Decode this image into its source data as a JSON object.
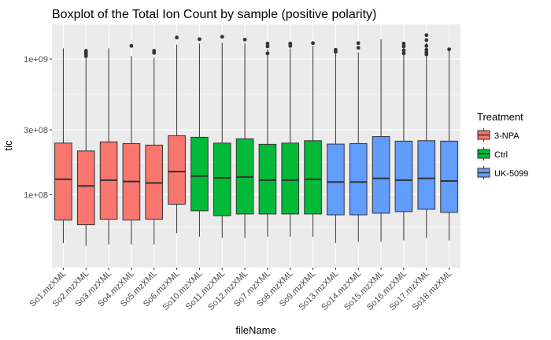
{
  "chart_data": {
    "type": "boxplot",
    "title": "Boxplot of the Total Ion Count by sample (positive polarity)",
    "xlabel": "fileName",
    "ylabel": "tic",
    "y_scale": "log10",
    "y_ticks": [
      {
        "value": 100000000,
        "label": "1e+08"
      },
      {
        "value": 300000000,
        "label": "3e+08"
      },
      {
        "value": 1000000000,
        "label": "1e+09"
      }
    ],
    "ylim": [
      29000000,
      1800000000
    ],
    "grid": true,
    "legend": {
      "title": "Treatment",
      "position": "right",
      "entries": [
        {
          "label": "3-NPA",
          "color": "#F8766D"
        },
        {
          "label": "Ctrl",
          "color": "#00BA38"
        },
        {
          "label": "UK-5099",
          "color": "#619CFF"
        }
      ]
    },
    "categories": [
      "So1.mzXML",
      "So2.mzXML",
      "So3.mzXML",
      "So4.mzXML",
      "So5.mzXML",
      "So6.mzXML",
      "So10.mzXML",
      "So11.mzXML",
      "So12.mzXML",
      "So7.mzXML",
      "So8.mzXML",
      "So9.mzXML",
      "So13.mzXML",
      "So14.mzXML",
      "So15.mzXML",
      "So16.mzXML",
      "So17.mzXML",
      "So18.mzXML"
    ],
    "boxes": [
      {
        "group": "3-NPA",
        "min": 44000000,
        "q1": 65000000,
        "median": 130000000,
        "q3": 240000000,
        "max": 1200000000,
        "outliers": []
      },
      {
        "group": "3-NPA",
        "min": 42000000,
        "q1": 60000000,
        "median": 116000000,
        "q3": 210000000,
        "max": 1100000000,
        "outliers": [
          1050000000,
          1080000000,
          1120000000,
          1150000000
        ]
      },
      {
        "group": "3-NPA",
        "min": 43000000,
        "q1": 66000000,
        "median": 128000000,
        "q3": 245000000,
        "max": 1200000000,
        "outliers": []
      },
      {
        "group": "3-NPA",
        "min": 43000000,
        "q1": 65000000,
        "median": 125000000,
        "q3": 238000000,
        "max": 1050000000,
        "outliers": [
          1250000000
        ]
      },
      {
        "group": "3-NPA",
        "min": 43000000,
        "q1": 66000000,
        "median": 122000000,
        "q3": 232000000,
        "max": 1020000000,
        "outliers": [
          1110000000,
          1150000000
        ]
      },
      {
        "group": "3-NPA",
        "min": 52000000,
        "q1": 85000000,
        "median": 148000000,
        "q3": 272000000,
        "max": 1280000000,
        "outliers": [
          1440000000
        ]
      },
      {
        "group": "Ctrl",
        "min": 49000000,
        "q1": 76000000,
        "median": 137000000,
        "q3": 265000000,
        "max": 1300000000,
        "outliers": [
          1400000000
        ]
      },
      {
        "group": "Ctrl",
        "min": 48000000,
        "q1": 70000000,
        "median": 133000000,
        "q3": 240000000,
        "max": 1320000000,
        "outliers": [
          1460000000
        ]
      },
      {
        "group": "Ctrl",
        "min": 48000000,
        "q1": 72000000,
        "median": 135000000,
        "q3": 258000000,
        "max": 1310000000,
        "outliers": [
          1390000000
        ]
      },
      {
        "group": "Ctrl",
        "min": 49000000,
        "q1": 72000000,
        "median": 128000000,
        "q3": 235000000,
        "max": 1180000000,
        "outliers": [
          1100000000,
          1240000000,
          1300000000
        ]
      },
      {
        "group": "Ctrl",
        "min": 49000000,
        "q1": 72000000,
        "median": 128000000,
        "q3": 240000000,
        "max": 1200000000,
        "outliers": [
          1250000000,
          1300000000
        ]
      },
      {
        "group": "Ctrl",
        "min": 49000000,
        "q1": 72000000,
        "median": 130000000,
        "q3": 250000000,
        "max": 1250000000,
        "outliers": [
          1310000000
        ]
      },
      {
        "group": "UK-5099",
        "min": 44000000,
        "q1": 71000000,
        "median": 124000000,
        "q3": 236000000,
        "max": 1100000000,
        "outliers": [
          1130000000,
          1170000000
        ]
      },
      {
        "group": "UK-5099",
        "min": 45000000,
        "q1": 71000000,
        "median": 124000000,
        "q3": 238000000,
        "max": 1120000000,
        "outliers": [
          1210000000,
          1310000000
        ]
      },
      {
        "group": "UK-5099",
        "min": 45000000,
        "q1": 73000000,
        "median": 132000000,
        "q3": 268000000,
        "max": 1400000000,
        "outliers": []
      },
      {
        "group": "UK-5099",
        "min": 46000000,
        "q1": 75000000,
        "median": 128000000,
        "q3": 248000000,
        "max": 1200000000,
        "outliers": [
          1100000000,
          1160000000,
          1240000000,
          1300000000
        ]
      },
      {
        "group": "UK-5099",
        "min": 48000000,
        "q1": 78000000,
        "median": 132000000,
        "q3": 250000000,
        "max": 1320000000,
        "outliers": [
          1080000000,
          1120000000,
          1170000000,
          1250000000,
          1380000000,
          1500000000
        ]
      },
      {
        "group": "UK-5099",
        "min": 46000000,
        "q1": 74000000,
        "median": 126000000,
        "q3": 248000000,
        "max": 1150000000,
        "outliers": [
          1180000000
        ]
      }
    ]
  }
}
